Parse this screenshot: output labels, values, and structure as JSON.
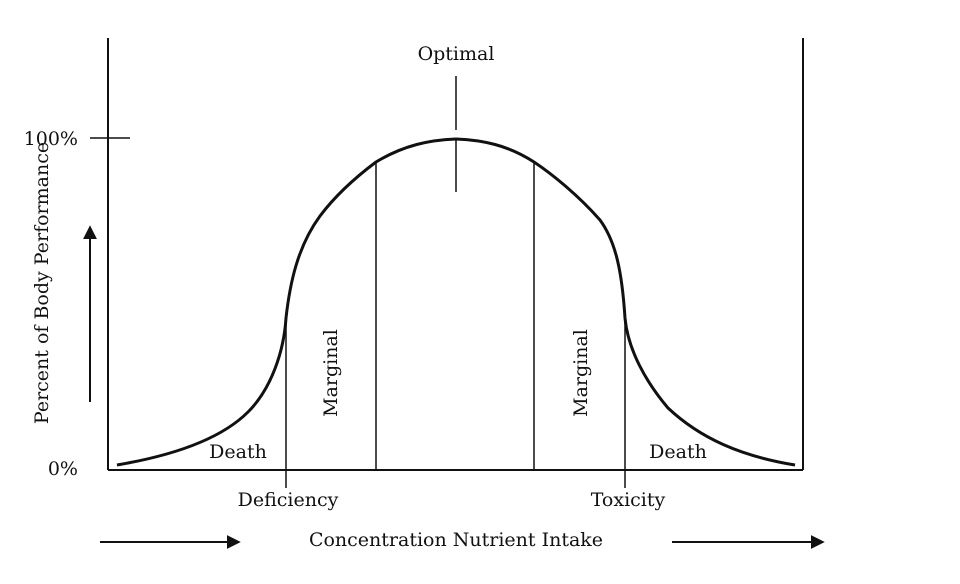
{
  "diagram": {
    "y_axis": {
      "label": "Percent of Body Performance",
      "tick_top": "100%",
      "tick_bottom": "0%"
    },
    "x_axis": {
      "label": "Concentration Nutrient Intake"
    },
    "annotations": {
      "peak": "Optimal",
      "left_boundary": "Deficiency",
      "right_boundary": "Toxicity"
    },
    "regions": {
      "left_death": "Death",
      "left_marginal": "Marginal",
      "right_marginal": "Marginal",
      "right_death": "Death"
    }
  }
}
